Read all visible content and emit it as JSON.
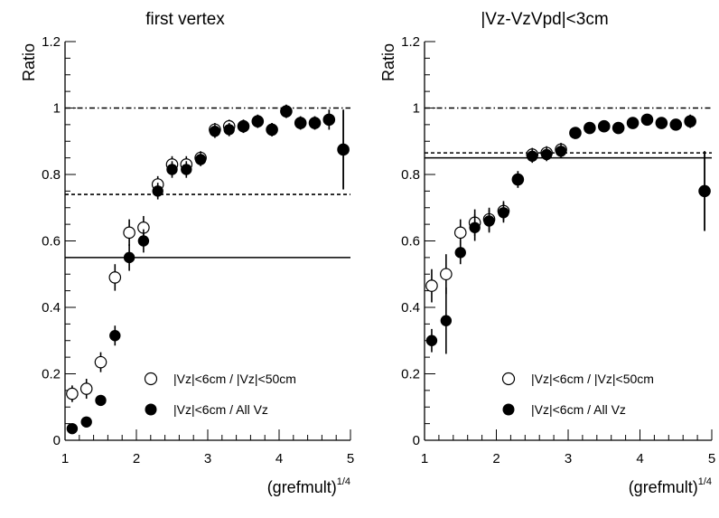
{
  "chart_data": [
    {
      "type": "scatter",
      "title": "first vertex",
      "ylabel": "Ratio",
      "xlabel_main": "(grefmult)",
      "xlabel_sup": "1/4",
      "xlim": [
        1,
        5
      ],
      "ylim": [
        0,
        1.2
      ],
      "x_ticks": [
        "1",
        "2",
        "3",
        "4",
        "5"
      ],
      "y_ticks": [
        "0",
        "0.2",
        "0.4",
        "0.6",
        "0.8",
        "1",
        "1.2"
      ],
      "hlines": [
        {
          "y": 1.0,
          "style": "dashdot"
        },
        {
          "y": 0.74,
          "style": "dashed"
        },
        {
          "y": 0.55,
          "style": "solid"
        }
      ],
      "legend": [
        {
          "label": "|Vz|<6cm / |Vz|<50cm",
          "marker": "open"
        },
        {
          "label": "|Vz|<6cm / All Vz",
          "marker": "filled"
        }
      ],
      "series": [
        {
          "name": "|Vz|<6cm / |Vz|<50cm",
          "marker": "open",
          "x": [
            1.1,
            1.3,
            1.5,
            1.7,
            1.9,
            2.1,
            2.3,
            2.5,
            2.7,
            2.9,
            3.1,
            3.3,
            3.5,
            3.7,
            3.9,
            4.1,
            4.3,
            4.5,
            4.7,
            4.9
          ],
          "y": [
            0.14,
            0.155,
            0.235,
            0.49,
            0.625,
            0.64,
            0.77,
            0.83,
            0.83,
            0.85,
            0.935,
            0.945,
            0.945,
            0.96,
            0.935,
            0.99,
            0.955,
            0.955,
            0.965,
            0.875
          ],
          "err": [
            0.025,
            0.03,
            0.03,
            0.04,
            0.04,
            0.035,
            0.025,
            0.025,
            0.025,
            0.02,
            0.02,
            0.02,
            0.02,
            0.02,
            0.02,
            0.02,
            0.02,
            0.02,
            0.03,
            0.12
          ]
        },
        {
          "name": "|Vz|<6cm / All Vz",
          "marker": "filled",
          "x": [
            1.1,
            1.3,
            1.5,
            1.7,
            1.9,
            2.1,
            2.3,
            2.5,
            2.7,
            2.9,
            3.1,
            3.3,
            3.5,
            3.7,
            3.9,
            4.1,
            4.3,
            4.5,
            4.7,
            4.9
          ],
          "y": [
            0.035,
            0.055,
            0.12,
            0.315,
            0.55,
            0.6,
            0.75,
            0.815,
            0.815,
            0.845,
            0.93,
            0.935,
            0.945,
            0.96,
            0.935,
            0.99,
            0.955,
            0.955,
            0.965,
            0.875
          ],
          "err": [
            0.01,
            0.01,
            0.015,
            0.03,
            0.04,
            0.035,
            0.025,
            0.025,
            0.025,
            0.02,
            0.02,
            0.02,
            0.02,
            0.02,
            0.02,
            0.02,
            0.02,
            0.02,
            0.03,
            0.12
          ]
        }
      ]
    },
    {
      "type": "scatter",
      "title": "|Vz-VzVpd|<3cm",
      "ylabel": "Ratio",
      "xlabel_main": "(grefmult)",
      "xlabel_sup": "1/4",
      "xlim": [
        1,
        5
      ],
      "ylim": [
        0,
        1.2
      ],
      "x_ticks": [
        "1",
        "2",
        "3",
        "4",
        "5"
      ],
      "y_ticks": [
        "0",
        "0.2",
        "0.4",
        "0.6",
        "0.8",
        "1",
        "1.2"
      ],
      "hlines": [
        {
          "y": 1.0,
          "style": "dashdot"
        },
        {
          "y": 0.865,
          "style": "dashed"
        },
        {
          "y": 0.85,
          "style": "solid"
        }
      ],
      "legend": [
        {
          "label": "|Vz|<6cm / |Vz|<50cm",
          "marker": "open"
        },
        {
          "label": "|Vz|<6cm / All Vz",
          "marker": "filled"
        }
      ],
      "series": [
        {
          "name": "|Vz|<6cm / |Vz|<50cm",
          "marker": "open",
          "x": [
            1.1,
            1.3,
            1.5,
            1.7,
            1.9,
            2.1,
            2.3,
            2.5,
            2.7,
            2.9,
            3.1,
            3.3,
            3.5,
            3.7,
            3.9,
            4.1,
            4.3,
            4.5,
            4.7,
            4.9
          ],
          "y": [
            0.465,
            0.5,
            0.625,
            0.655,
            0.665,
            0.69,
            0.785,
            0.86,
            0.865,
            0.875,
            0.925,
            0.94,
            0.945,
            0.94,
            0.955,
            0.965,
            0.955,
            0.95,
            0.96,
            0.75
          ],
          "err": [
            0.05,
            0.06,
            0.04,
            0.04,
            0.035,
            0.03,
            0.025,
            0.02,
            0.02,
            0.02,
            0.015,
            0.015,
            0.015,
            0.015,
            0.015,
            0.015,
            0.015,
            0.015,
            0.02,
            0.12
          ]
        },
        {
          "name": "|Vz|<6cm / All Vz",
          "marker": "filled",
          "x": [
            1.1,
            1.3,
            1.5,
            1.7,
            1.9,
            2.1,
            2.3,
            2.5,
            2.7,
            2.9,
            3.1,
            3.3,
            3.5,
            3.7,
            3.9,
            4.1,
            4.3,
            4.5,
            4.7,
            4.9
          ],
          "y": [
            0.3,
            0.36,
            0.565,
            0.64,
            0.66,
            0.685,
            0.785,
            0.855,
            0.86,
            0.87,
            0.925,
            0.94,
            0.945,
            0.94,
            0.955,
            0.965,
            0.955,
            0.95,
            0.96,
            0.75
          ],
          "err": [
            0.035,
            0.1,
            0.035,
            0.04,
            0.035,
            0.03,
            0.025,
            0.02,
            0.02,
            0.02,
            0.015,
            0.015,
            0.015,
            0.015,
            0.015,
            0.015,
            0.015,
            0.015,
            0.02,
            0.12
          ]
        }
      ]
    }
  ]
}
